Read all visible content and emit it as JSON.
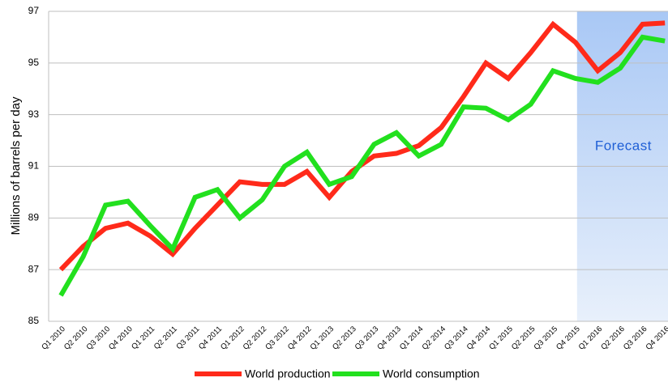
{
  "chart_data": {
    "type": "line",
    "ylabel": "Millions of barrels per day",
    "categories": [
      "Q1 2010",
      "Q2 2010",
      "Q3 2010",
      "Q4 2010",
      "Q1 2011",
      "Q2 2011",
      "Q3 2011",
      "Q4 2011",
      "Q1 2012",
      "Q2 2012",
      "Q3 2012",
      "Q4 2012",
      "Q1 2013",
      "Q2 2013",
      "Q3 2013",
      "Q4 2013",
      "Q1 2014",
      "Q2 2014",
      "Q3 2014",
      "Q4 2014",
      "Q1 2015",
      "Q2 2015",
      "Q3 2015",
      "Q4 2015",
      "Q1 2016",
      "Q2 2016",
      "Q3 2016",
      "Q4 2016"
    ],
    "series": [
      {
        "name": "World production",
        "color": "#ff2a1a",
        "values": [
          87.0,
          87.9,
          88.6,
          88.8,
          88.3,
          87.6,
          88.6,
          89.5,
          90.4,
          90.3,
          90.3,
          90.8,
          89.8,
          90.8,
          91.4,
          91.5,
          91.8,
          92.5,
          93.7,
          95.0,
          94.4,
          95.4,
          96.5,
          95.8,
          94.7,
          95.4,
          96.5,
          96.55
        ]
      },
      {
        "name": "World consumption",
        "color": "#22e01e",
        "values": [
          86.0,
          87.5,
          89.5,
          89.65,
          88.7,
          87.8,
          89.8,
          90.1,
          89.0,
          89.7,
          91.0,
          91.55,
          90.3,
          90.6,
          91.85,
          92.3,
          91.4,
          91.85,
          93.3,
          93.25,
          92.8,
          93.4,
          94.7,
          94.4,
          94.25,
          94.8,
          96.0,
          95.85
        ]
      }
    ],
    "forecast": {
      "label": "Forecast",
      "from": "Q4 2015"
    },
    "ylim": [
      85,
      97
    ],
    "yticks": [
      85,
      87,
      89,
      91,
      93,
      95,
      97
    ],
    "grid": true,
    "legend": "bottom"
  }
}
